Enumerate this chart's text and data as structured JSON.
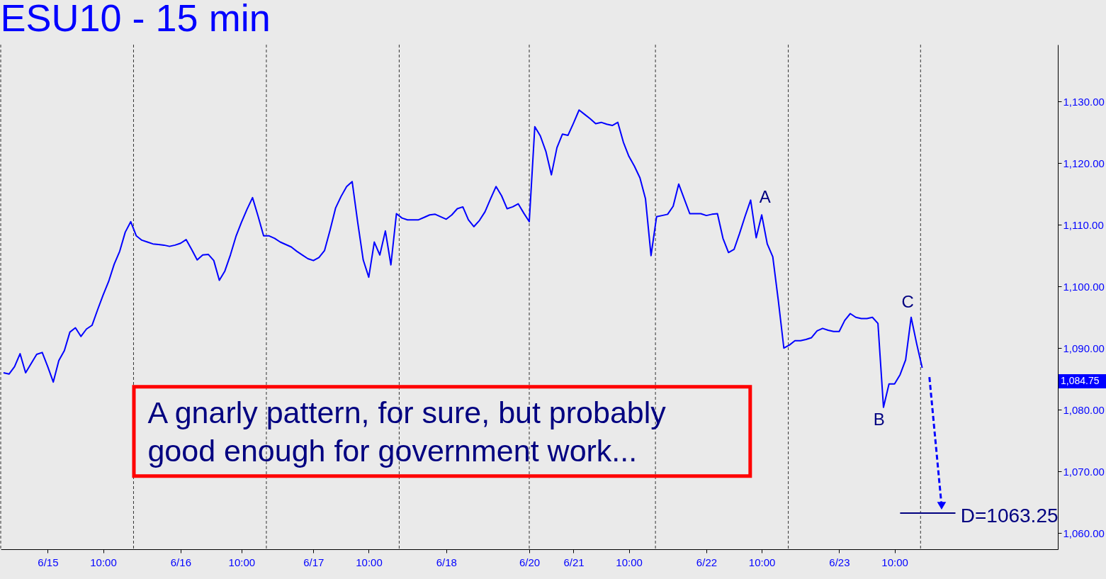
{
  "chart_data": {
    "type": "line",
    "title": "ESU10 - 15 min",
    "categories": [
      null,
      null,
      null,
      null,
      null,
      null,
      null,
      null,
      "6/15",
      null,
      null,
      null,
      null,
      null,
      null,
      null,
      null,
      null,
      "10:00",
      null,
      null,
      null,
      null,
      null,
      null,
      null,
      null,
      null,
      null,
      null,
      null,
      null,
      "6/16",
      null,
      null,
      null,
      null,
      null,
      null,
      null,
      null,
      null,
      null,
      "10:00",
      null,
      null,
      null,
      null,
      null,
      null,
      null,
      null,
      null,
      null,
      null,
      null,
      "6/17",
      null,
      null,
      null,
      null,
      null,
      null,
      null,
      null,
      null,
      "10:00",
      null,
      null,
      null,
      null,
      null,
      null,
      null,
      null,
      null,
      null,
      null,
      null,
      null,
      "6/18",
      null,
      null,
      null,
      null,
      null,
      null,
      null,
      null,
      null,
      null,
      null,
      null,
      null,
      null,
      "6/20",
      null,
      null,
      null,
      null,
      null,
      null,
      null,
      "6/21",
      null,
      null,
      null,
      null,
      null,
      null,
      null,
      null,
      null,
      "10:00",
      null,
      null,
      null,
      null,
      null,
      null,
      null,
      null,
      null,
      null,
      null,
      null,
      null,
      "6/22",
      null,
      null,
      null,
      null,
      null,
      null,
      null,
      null,
      null,
      "10:00",
      null,
      null,
      null,
      null,
      null,
      null,
      null,
      null,
      null,
      null,
      null,
      null,
      null,
      "6/23",
      null,
      null,
      null,
      null,
      null,
      null,
      null,
      null,
      null,
      "10:00",
      null,
      null,
      null,
      null,
      null,
      null,
      null,
      null,
      null,
      null,
      null,
      null,
      null,
      null,
      null,
      null,
      null,
      null,
      null,
      null,
      null,
      null,
      null,
      null,
      null,
      null,
      null,
      null,
      null
    ],
    "ylim": [
      1057.4,
      1139.2
    ],
    "yticks": [
      {
        "value": 1060,
        "label": "1,060.00"
      },
      {
        "value": 1070,
        "label": "1,070.00"
      },
      {
        "value": 1080,
        "label": "1,080.00"
      },
      {
        "value": 1090,
        "label": "1,090.00"
      },
      {
        "value": 1100,
        "label": "1,100.00"
      },
      {
        "value": 1110,
        "label": "1,110.00"
      },
      {
        "value": 1120,
        "label": "1,120.00"
      },
      {
        "value": 1130,
        "label": "1,130.00"
      }
    ],
    "line_style": "solid",
    "series": [
      {
        "color": "#0000ff",
        "values": [
          1086.0,
          1085.8,
          1087.0,
          1089.1,
          1086.0,
          1087.5,
          1089.0,
          1089.3,
          1087.0,
          1084.5,
          1088.0,
          1089.6,
          1092.6,
          1093.3,
          1091.9,
          1093.1,
          1093.7,
          1096.2,
          1098.6,
          1100.8,
          1103.6,
          1105.7,
          1108.8,
          1110.5,
          1108.2,
          1107.5,
          1107.2,
          1106.9,
          1106.8,
          1106.7,
          1106.5,
          1106.7,
          1107.0,
          1107.6,
          1106.0,
          1104.3,
          1105.1,
          1105.2,
          1104.2,
          1101.0,
          1102.5,
          1105.1,
          1108.1,
          1110.4,
          1112.5,
          1114.4,
          1111.4,
          1108.2,
          1108.2,
          1107.8,
          1107.2,
          1106.8,
          1106.4,
          1105.7,
          1105.1,
          1104.5,
          1104.2,
          1104.7,
          1105.8,
          1109.1,
          1112.7,
          1114.6,
          1116.2,
          1117.0,
          1110.4,
          1104.3,
          1101.5,
          1107.2,
          1105.1,
          1109.0,
          1103.5,
          1111.8,
          1111.1,
          1110.8,
          1110.8,
          1110.8,
          1111.2,
          1111.6,
          1111.7,
          1111.3,
          1110.9,
          1111.6,
          1112.6,
          1112.9,
          1110.8,
          1109.7,
          1110.7,
          1112.1,
          1114.2,
          1116.2,
          1114.7,
          1112.6,
          1112.9,
          1113.4,
          1111.9,
          1110.5,
          1125.9,
          1124.4,
          1121.9,
          1118.1,
          1122.5,
          1124.7,
          1124.5,
          1126.5,
          1128.6,
          1127.9,
          1127.2,
          1126.4,
          1126.6,
          1126.3,
          1126.1,
          1126.6,
          1123.4,
          1121.1,
          1119.5,
          1117.6,
          1114.2,
          1105.0,
          1111.3,
          1111.5,
          1111.7,
          1113.0,
          1116.6,
          1114.2,
          1111.8,
          1111.8,
          1111.8,
          1111.5,
          1111.7,
          1111.8,
          1107.8,
          1105.5,
          1106.0,
          1108.6,
          1111.4,
          1114.0,
          1107.9,
          1111.6,
          1106.9,
          1104.8,
          1097.7,
          1090.0,
          1090.5,
          1091.2,
          1091.2,
          1091.4,
          1091.7,
          1092.8,
          1093.2,
          1092.9,
          1092.7,
          1092.7,
          1094.5,
          1095.6,
          1095.0,
          1094.8,
          1094.8,
          1095.0,
          1094.0,
          1080.4,
          1084.2,
          1084.2,
          1085.7,
          1088.1,
          1095.0,
          1090.7,
          1086.8,
          null,
          null,
          null,
          null,
          null,
          null,
          null,
          null,
          null,
          null,
          null,
          null,
          null,
          null,
          null,
          null,
          null,
          null,
          null,
          null,
          null,
          null,
          null,
          null
        ]
      },
      {
        "color": "#000080",
        "values": [
          null,
          null,
          null,
          null,
          null,
          null,
          null,
          null,
          null,
          null,
          null,
          null,
          null,
          null,
          null,
          null,
          null,
          null,
          null,
          null,
          null,
          null,
          null,
          null,
          null,
          null,
          null,
          null,
          null,
          null,
          null,
          null,
          null,
          null,
          null,
          null,
          null,
          null,
          null,
          null,
          null,
          null,
          null,
          null,
          null,
          null,
          null,
          null,
          null,
          null,
          null,
          null,
          null,
          null,
          null,
          null,
          null,
          null,
          null,
          null,
          null,
          null,
          null,
          null,
          null,
          null,
          null,
          null,
          null,
          null,
          null,
          null,
          null,
          null,
          null,
          null,
          null,
          null,
          null,
          null,
          null,
          null,
          null,
          null,
          null,
          null,
          null,
          null,
          null,
          null,
          null,
          null,
          null,
          null,
          null,
          null,
          null,
          null,
          null,
          null,
          null,
          null,
          null,
          null,
          null,
          null,
          null,
          null,
          null,
          null,
          null,
          null,
          null,
          null,
          null,
          null,
          null,
          null,
          null,
          null,
          null,
          null,
          null,
          null,
          null,
          null,
          null,
          null,
          null,
          null,
          null,
          null,
          null,
          null,
          null,
          null,
          null,
          null,
          null,
          null,
          null,
          null,
          null,
          null,
          null,
          null,
          null,
          null,
          null,
          null,
          null,
          null,
          null,
          null,
          null,
          null,
          null,
          null,
          null,
          null,
          null,
          null,
          1063.25,
          1063.25,
          1063.25,
          1063.25,
          1063.25,
          1063.25,
          1063.25,
          1063.25,
          1063.25,
          1063.25,
          1063.25,
          null,
          null,
          null,
          null,
          null,
          null,
          null,
          null,
          null,
          null,
          null,
          null,
          null,
          null,
          null,
          null,
          null,
          null
        ]
      }
    ],
    "annotations": [
      "A",
      "B",
      "C",
      "D=1063.25",
      "1,084.75",
      "A gnarly pattern, for sure, but  probably\ngood enough for government work..."
    ]
  }
}
